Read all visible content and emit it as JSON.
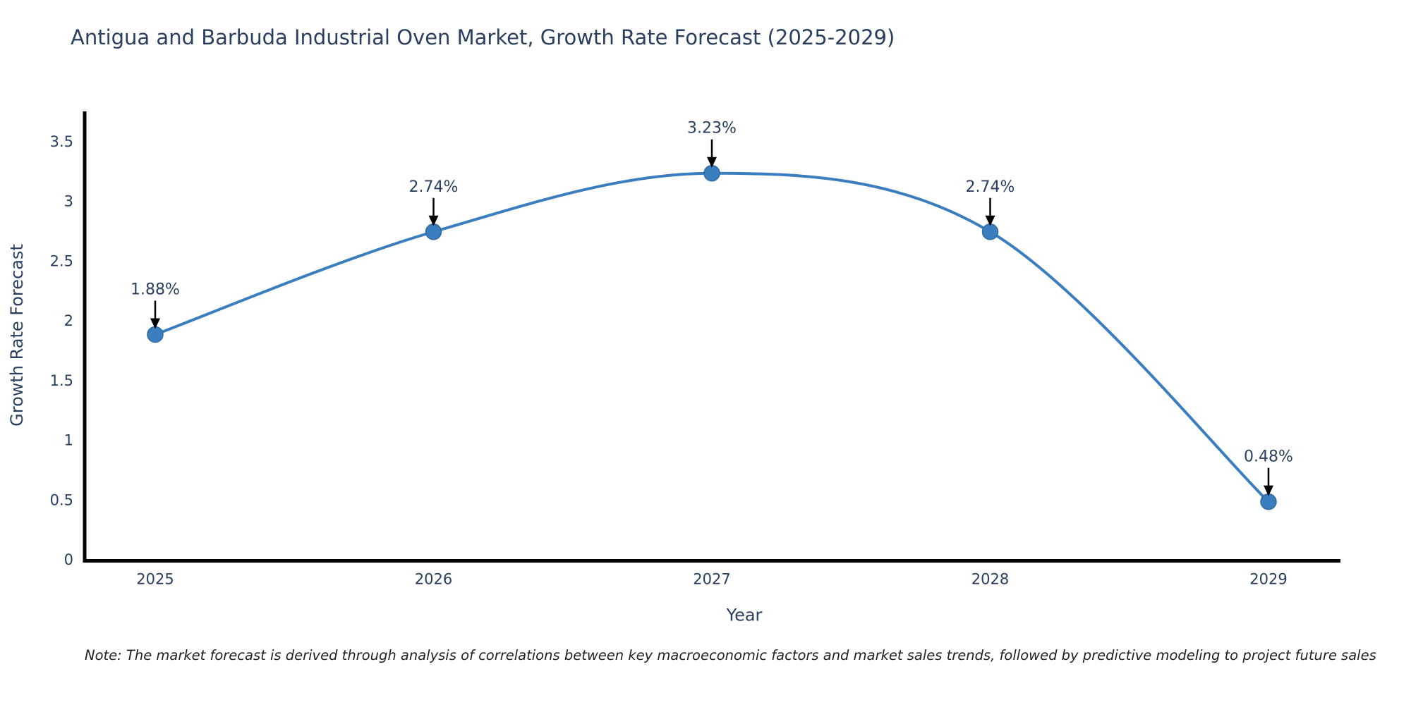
{
  "title": "Antigua and Barbuda Industrial Oven Market, Growth Rate Forecast (2025-2029)",
  "note": "Note: The market forecast is derived through analysis of correlations between key macroeconomic factors and market sales trends, followed by predictive modeling to project future sales",
  "chart_data": {
    "type": "line",
    "line_shape": "spline",
    "categories": [
      "2025",
      "2026",
      "2027",
      "2028",
      "2029"
    ],
    "series": [
      {
        "name": "Growth Rate Forecast",
        "values": [
          1.88,
          2.74,
          3.23,
          2.74,
          0.48
        ]
      }
    ],
    "point_labels": [
      "1.88%",
      "2.74%",
      "3.23%",
      "2.74%",
      "0.48%"
    ],
    "title": "Antigua and Barbuda Industrial Oven Market, Growth Rate Forecast (2025-2029)",
    "xlabel": "Year",
    "ylabel": "Growth Rate Forecast",
    "ylim": [
      0,
      3.75
    ],
    "yticks": [
      0,
      0.5,
      1,
      1.5,
      2,
      2.5,
      3,
      3.5
    ],
    "grid": false,
    "legend": "none",
    "colors": {
      "line": "#3a7ebf",
      "marker": "#3a7ebf",
      "marker_edge": "#2f6ba3",
      "axis_line": "#000000",
      "tick_text": "#2a3f5f",
      "axis_title_text": "#2a3f5f",
      "annotation_text": "#2a3f5f",
      "annotation_arrow": "#000000",
      "background": "#ffffff"
    }
  }
}
